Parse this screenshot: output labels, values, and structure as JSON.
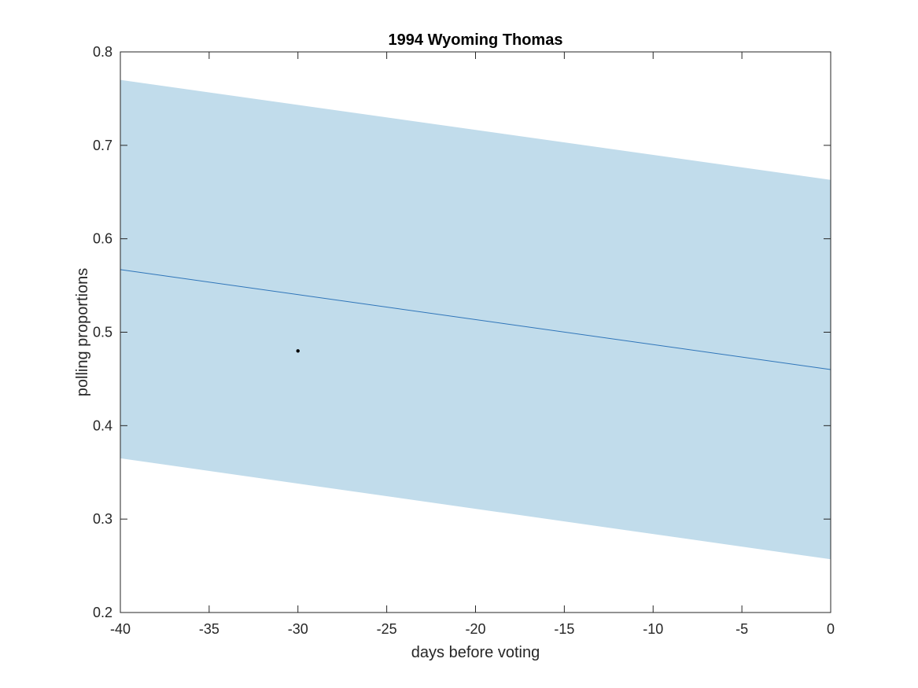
{
  "chart_data": {
    "type": "line",
    "title": "1994 Wyoming Thomas",
    "xlabel": "days before voting",
    "ylabel": "polling proportions",
    "xlim": [
      -40,
      0
    ],
    "ylim": [
      0.2,
      0.8
    ],
    "xticks": [
      -40,
      -35,
      -30,
      -25,
      -20,
      -15,
      -10,
      -5,
      0
    ],
    "yticks": [
      0.2,
      0.3,
      0.4,
      0.5,
      0.6,
      0.7,
      0.8
    ],
    "xtick_labels": [
      "-40",
      "-35",
      "-30",
      "-25",
      "-20",
      "-15",
      "-10",
      "-5",
      "0"
    ],
    "ytick_labels": [
      "0.2",
      "0.3",
      "0.4",
      "0.5",
      "0.6",
      "0.7",
      "0.8"
    ],
    "grid": false,
    "series": [
      {
        "kind": "band",
        "x": [
          -40,
          0
        ],
        "lower": [
          0.365,
          0.257
        ],
        "upper": [
          0.77,
          0.663
        ],
        "color": "#c1dceb"
      },
      {
        "kind": "line",
        "x": [
          -40,
          0
        ],
        "y": [
          0.567,
          0.46
        ],
        "color": "#2f75b9"
      },
      {
        "kind": "scatter",
        "x": [
          -30
        ],
        "y": [
          0.48
        ],
        "color": "#000000"
      }
    ]
  }
}
